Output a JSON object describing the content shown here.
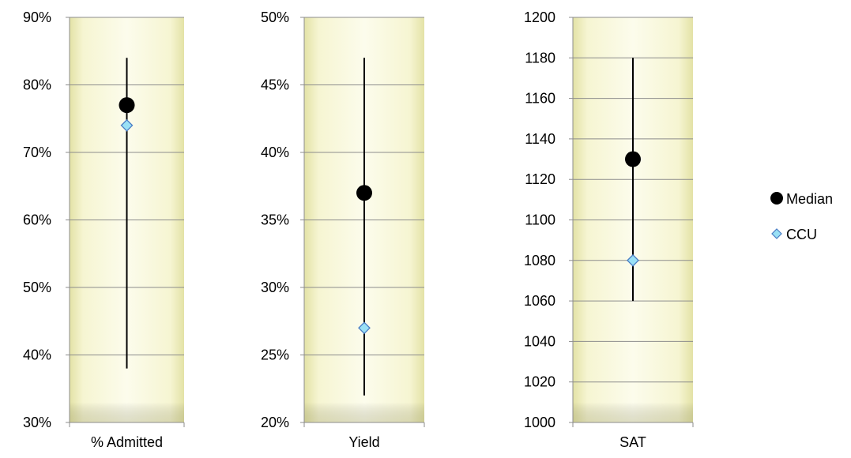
{
  "chart_data": [
    {
      "type": "scatter",
      "category": "% Admitted",
      "ylim": [
        0.3,
        0.9
      ],
      "yticks": [
        "30%",
        "40%",
        "50%",
        "60%",
        "70%",
        "80%",
        "90%"
      ],
      "ytick_values": [
        0.3,
        0.4,
        0.5,
        0.6,
        0.7,
        0.8,
        0.9
      ],
      "range": {
        "low": 0.38,
        "high": 0.84
      },
      "series": [
        {
          "name": "Median",
          "value": 0.77
        },
        {
          "name": "CCU",
          "value": 0.74
        }
      ]
    },
    {
      "type": "scatter",
      "category": "Yield",
      "ylim": [
        0.2,
        0.5
      ],
      "yticks": [
        "20%",
        "25%",
        "30%",
        "35%",
        "40%",
        "45%",
        "50%"
      ],
      "ytick_values": [
        0.2,
        0.25,
        0.3,
        0.35,
        0.4,
        0.45,
        0.5
      ],
      "range": {
        "low": 0.22,
        "high": 0.47
      },
      "series": [
        {
          "name": "Median",
          "value": 0.37
        },
        {
          "name": "CCU",
          "value": 0.27
        }
      ]
    },
    {
      "type": "scatter",
      "category": "SAT",
      "ylim": [
        1000,
        1200
      ],
      "yticks": [
        "1000",
        "1020",
        "1040",
        "1060",
        "1080",
        "1100",
        "1120",
        "1140",
        "1160",
        "1180",
        "1200"
      ],
      "ytick_values": [
        1000,
        1020,
        1040,
        1060,
        1080,
        1100,
        1120,
        1140,
        1160,
        1180,
        1200
      ],
      "range": {
        "low": 1060,
        "high": 1180
      },
      "series": [
        {
          "name": "Median",
          "value": 1130
        },
        {
          "name": "CCU",
          "value": 1080
        }
      ]
    }
  ],
  "legend": {
    "position": "right",
    "items": [
      {
        "name": "Median",
        "marker": "circle",
        "color": "#000000"
      },
      {
        "name": "CCU",
        "marker": "diamond",
        "color": "#99E0F5",
        "stroke": "#4A7CC4"
      }
    ]
  },
  "colors": {
    "plot_fill_light": "#FBFAE8",
    "plot_fill_dark": "#ECEBB2",
    "gridline": "#8C8C8C",
    "axis": "#8C8C8C"
  }
}
